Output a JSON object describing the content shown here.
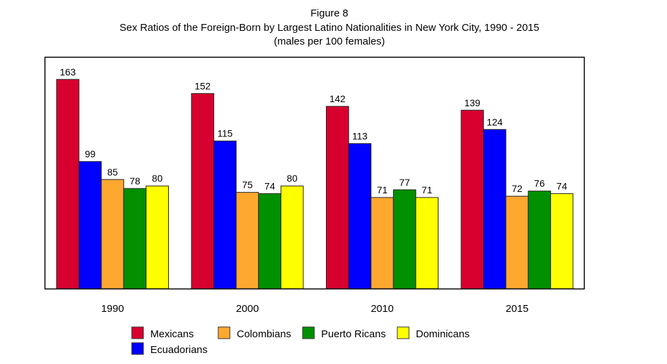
{
  "chart_data": {
    "type": "bar",
    "title": "Figure 8",
    "subtitle": "Sex Ratios of the Foreign-Born  by Largest Latino Nationalities in New York City, 1990 - 2015",
    "subtitle2": "(males per 100 females)",
    "xlabel": "",
    "ylabel": "",
    "ylim": [
      0,
      180
    ],
    "grid": false,
    "legend_position": "bottom",
    "categories": [
      "1990",
      "2000",
      "2010",
      "2015"
    ],
    "series": [
      {
        "name": "Mexicans",
        "color": "#d8002f",
        "values": [
          163,
          152,
          142,
          139
        ]
      },
      {
        "name": "Ecuadorians",
        "color": "#0000ff",
        "values": [
          99,
          115,
          113,
          124
        ]
      },
      {
        "name": "Colombians",
        "color": "#ffa830",
        "values": [
          85,
          75,
          71,
          72
        ]
      },
      {
        "name": "Puerto Ricans",
        "color": "#009000",
        "values": [
          78,
          74,
          77,
          76
        ]
      },
      {
        "name": "Dominicans",
        "color": "#ffff00",
        "values": [
          80,
          80,
          71,
          74
        ]
      }
    ]
  }
}
